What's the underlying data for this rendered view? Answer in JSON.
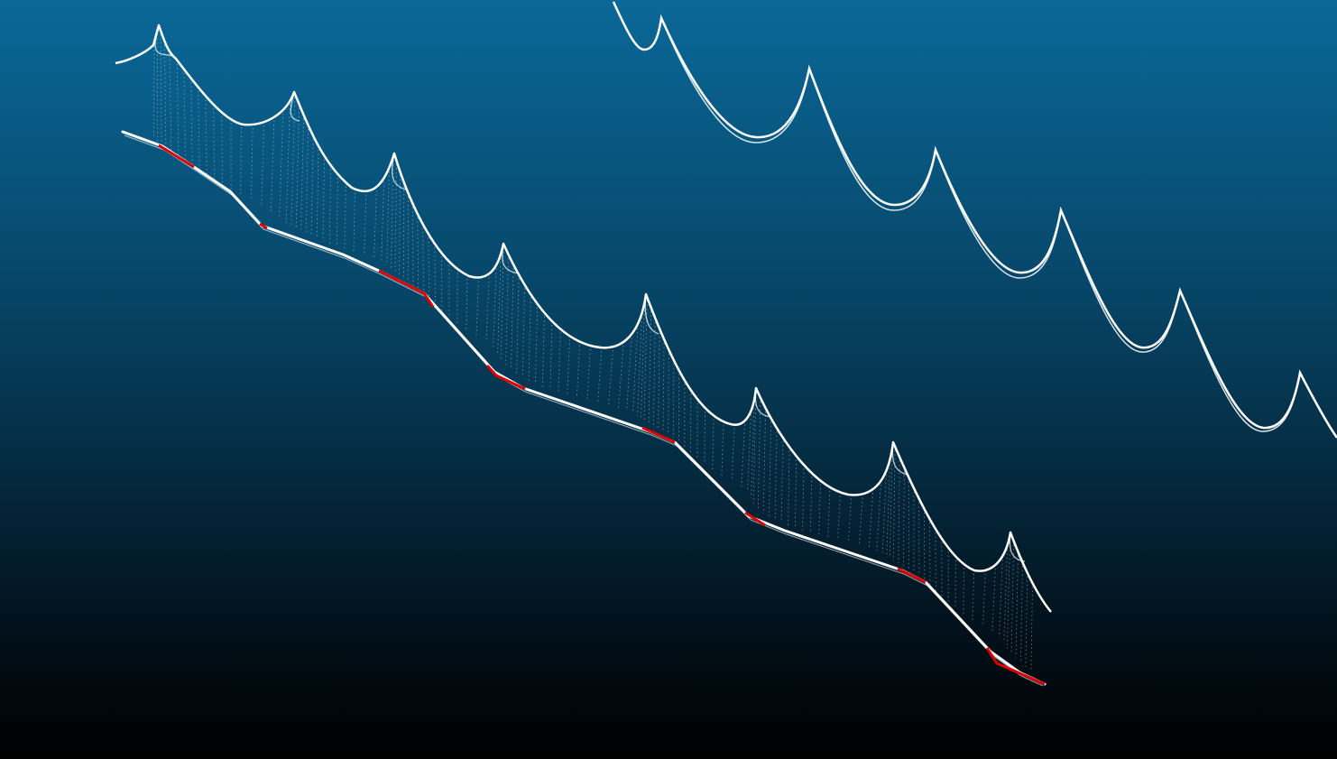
{
  "viewer": {
    "background_top": "#0a6898",
    "background_bottom": "#000000"
  },
  "scene": {
    "point_color": "#ffffff",
    "highlight_color": "#e00000"
  }
}
